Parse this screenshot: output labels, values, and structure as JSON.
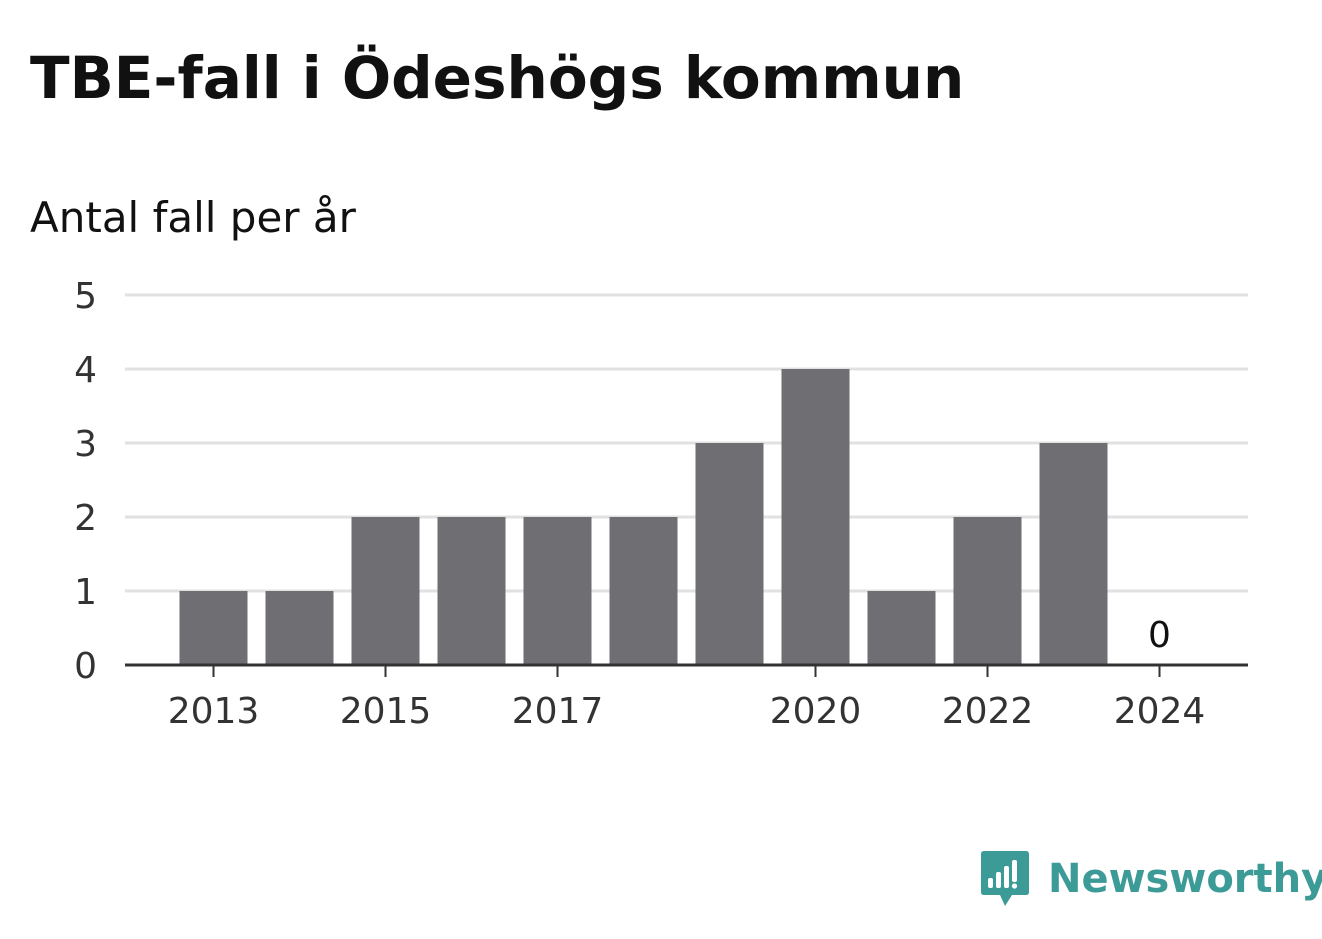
{
  "chart_data": {
    "type": "bar",
    "title": "TBE-fall i Ödeshögs kommun",
    "subtitle": "Antal fall per år",
    "xlabel": "",
    "ylabel": "",
    "categories": [
      "2013",
      "2014",
      "2015",
      "2016",
      "2017",
      "2018",
      "2019",
      "2020",
      "2021",
      "2022",
      "2023",
      "2024"
    ],
    "values": [
      1,
      1,
      2,
      2,
      2,
      2,
      3,
      4,
      1,
      2,
      3,
      0
    ],
    "x_tick_labels": [
      "2013",
      "2015",
      "2017",
      "2020",
      "2022",
      "2024"
    ],
    "y_ticks": [
      0,
      1,
      2,
      3,
      4,
      5
    ],
    "ylim": [
      0,
      5
    ],
    "grid": true,
    "data_labels": [
      {
        "category": "2024",
        "text": "0"
      }
    ],
    "bar_color": "#6e6e73",
    "grid_color": "#e1e1e1",
    "axis_color": "#333333"
  },
  "brand": {
    "name": "Newsworthy",
    "color": "#3d9b97",
    "icon": "newsworthy-logo-icon"
  }
}
